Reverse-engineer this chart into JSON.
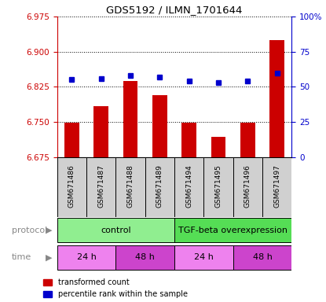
{
  "title": "GDS5192 / ILMN_1701644",
  "samples": [
    "GSM671486",
    "GSM671487",
    "GSM671488",
    "GSM671489",
    "GSM671494",
    "GSM671495",
    "GSM671496",
    "GSM671497"
  ],
  "red_values": [
    6.748,
    6.783,
    6.838,
    6.808,
    6.748,
    6.718,
    6.748,
    6.925
  ],
  "blue_values": [
    55,
    56,
    58,
    57,
    54,
    53,
    54,
    60
  ],
  "ylim_left": [
    6.675,
    6.975
  ],
  "ylim_right": [
    0,
    100
  ],
  "yticks_left": [
    6.675,
    6.75,
    6.825,
    6.9,
    6.975
  ],
  "yticks_right": [
    0,
    25,
    50,
    75,
    100
  ],
  "ytick_labels_right": [
    "0",
    "25",
    "50",
    "75",
    "100%"
  ],
  "protocol_groups": [
    {
      "label": "control",
      "start": 0,
      "end": 3,
      "color": "#90ee90"
    },
    {
      "label": "TGF-beta overexpression",
      "start": 4,
      "end": 7,
      "color": "#55dd55"
    }
  ],
  "time_groups": [
    {
      "label": "24 h",
      "start": 0,
      "end": 1,
      "color": "#ee82ee"
    },
    {
      "label": "48 h",
      "start": 2,
      "end": 3,
      "color": "#cc44cc"
    },
    {
      "label": "24 h",
      "start": 4,
      "end": 5,
      "color": "#ee82ee"
    },
    {
      "label": "48 h",
      "start": 6,
      "end": 7,
      "color": "#cc44cc"
    }
  ],
  "bar_color": "#cc0000",
  "dot_color": "#0000cc",
  "base_value": 6.675,
  "left_axis_color": "#cc0000",
  "right_axis_color": "#0000cc",
  "sample_box_color": "#d0d0d0",
  "arrow_color": "#888888",
  "label_color": "#888888"
}
